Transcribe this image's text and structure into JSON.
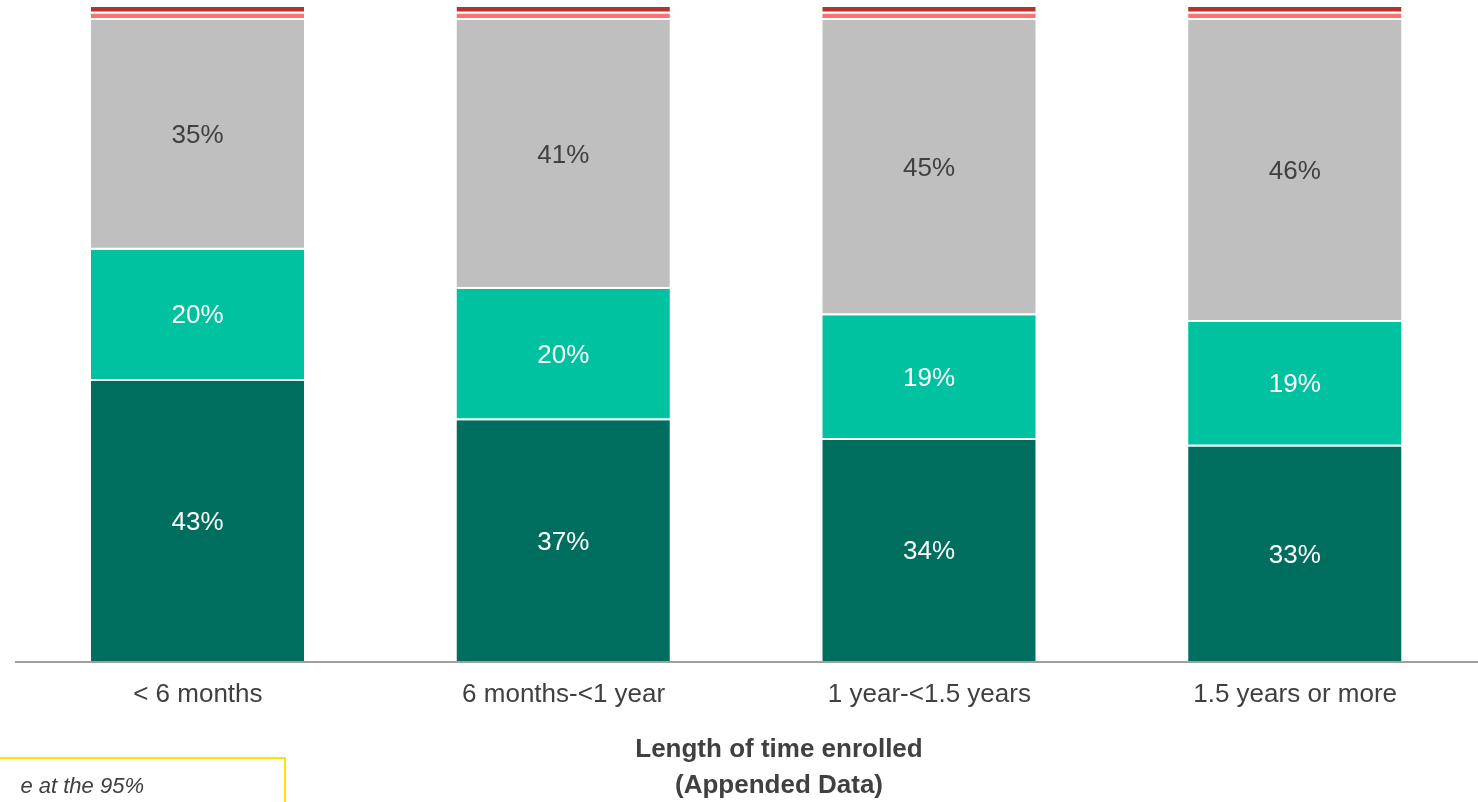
{
  "chart_data": {
    "type": "bar",
    "stacked": true,
    "xlabel": "Length of time enrolled\n(Appended Data)",
    "categories": [
      "< 6 months",
      "6 months-<1 year",
      "1 year-<1.5 years",
      "1.5 years or more"
    ],
    "series": [
      {
        "color": "#006e5f",
        "values": [
          43,
          37,
          34,
          33
        ],
        "value_labels": [
          "43%",
          "37%",
          "34%",
          "33%"
        ]
      },
      {
        "color": "#00c1a0",
        "values": [
          20,
          20,
          19,
          19
        ],
        "value_labels": [
          "20%",
          "20%",
          "19%",
          "19%"
        ]
      },
      {
        "color": "#bfbfbf",
        "values": [
          35,
          41,
          45,
          46
        ],
        "value_labels": [
          "35%",
          "41%",
          "45%",
          "46%"
        ]
      },
      {
        "color": "#ff7070",
        "values": [
          1,
          1,
          1,
          1
        ]
      },
      {
        "color": "#b5322e",
        "values": [
          1,
          1,
          1,
          1
        ]
      }
    ],
    "annotations": [
      "e at the 95%"
    ],
    "legend": false,
    "grid": false
  }
}
